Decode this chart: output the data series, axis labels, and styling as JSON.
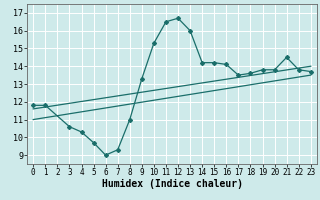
{
  "xlabel": "Humidex (Indice chaleur)",
  "bg_color": "#ceeaea",
  "line_color": "#1a6e6a",
  "xlim": [
    -0.5,
    23.5
  ],
  "ylim": [
    8.5,
    17.5
  ],
  "xticks": [
    0,
    1,
    2,
    3,
    4,
    5,
    6,
    7,
    8,
    9,
    10,
    11,
    12,
    13,
    14,
    15,
    16,
    17,
    18,
    19,
    20,
    21,
    22,
    23
  ],
  "yticks": [
    9,
    10,
    11,
    12,
    13,
    14,
    15,
    16,
    17
  ],
  "curve1_x": [
    0,
    1,
    3,
    4,
    5,
    6,
    7,
    8,
    9,
    10,
    11,
    12,
    13,
    14,
    15,
    16,
    17,
    18,
    19,
    20,
    21,
    22,
    23
  ],
  "curve1_y": [
    11.8,
    11.8,
    10.6,
    10.3,
    9.7,
    9.0,
    9.3,
    11.0,
    13.3,
    15.3,
    16.5,
    16.7,
    16.0,
    14.2,
    14.2,
    14.1,
    13.5,
    13.6,
    13.8,
    13.8,
    14.5,
    13.8,
    13.7
  ],
  "line2_x": [
    0,
    23
  ],
  "line2_y": [
    11.6,
    14.0
  ],
  "line3_x": [
    0,
    23
  ],
  "line3_y": [
    11.0,
    13.5
  ]
}
